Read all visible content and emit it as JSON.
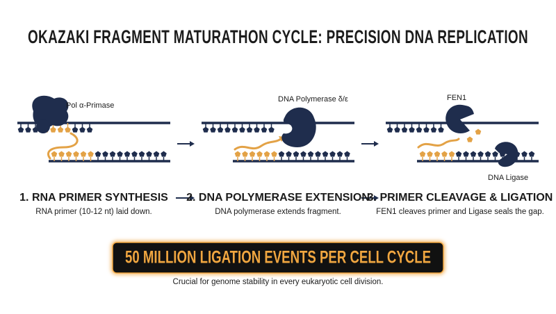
{
  "header": {
    "title": "OKAZAKI FRAGMENT   MATURATHON CYCLE: PRECISION DNA REPLICATION"
  },
  "steps": [
    {
      "enzymes": [
        "Pol α-Primase"
      ],
      "heading": "1. RNA PRIMER SYNTHESIS",
      "description": "RNA primer (10-12 nt) laid down."
    },
    {
      "enzymes": [
        "DNA Polymerase δ/ε"
      ],
      "heading": "2. DNA POLYMERASE EXTENSION",
      "description": "DNA polymerase extends fragment."
    },
    {
      "enzymes": [
        "FEN1",
        "DNA Ligase"
      ],
      "heading": "3. PRIMER CLEAVAGE & LIGATION",
      "description": "FEN1 cleaves primer and Ligase seals the gap."
    }
  ],
  "banner": {
    "text": "50 MILLION LIGATION EVENTS PER CELL CYCLE",
    "caption": "Crucial for genome stability in every eukaryotic cell division."
  }
}
